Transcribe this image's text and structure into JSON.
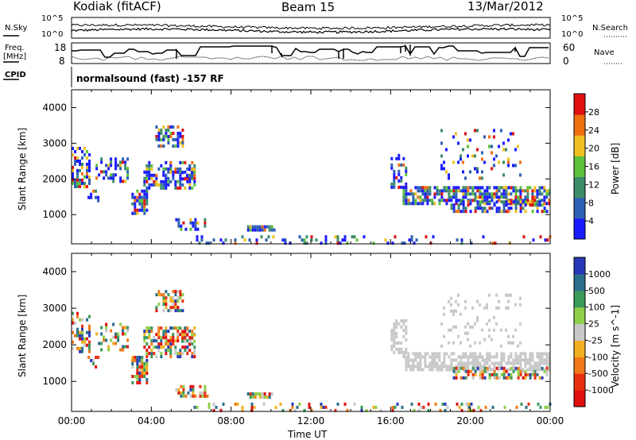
{
  "header": {
    "station": "Kodiak (fitACF)",
    "beam": "Beam 15",
    "date": "13/Mar/2012"
  },
  "noise_panel": {
    "left_label": "N.Sky",
    "right_label": "N.Search",
    "left_ticks": [
      "10^5",
      "10^0"
    ],
    "right_ticks": [
      "10^5",
      "10^0"
    ]
  },
  "freq_panel": {
    "left_label_1": "Freq.",
    "left_label_2": "[MHz]",
    "right_label": "Nave",
    "left_ticks": [
      "18",
      "8"
    ],
    "right_ticks": [
      "60",
      "0"
    ]
  },
  "cpid_panel": {
    "label": "CPID",
    "text": "normalsound (fast) -157 RF"
  },
  "chart_data": [
    {
      "type": "heatmap",
      "title": "Power",
      "ylabel": "Slant Range [km]",
      "xlabel": "",
      "y_ticks": [
        "1000",
        "2000",
        "3000",
        "4000"
      ],
      "ylim": [
        180,
        4500
      ],
      "colorbar_label": "Power [dB]",
      "colorbar_ticks": [
        "4",
        "8",
        "12",
        "16",
        "20",
        "24",
        "28"
      ],
      "colors": [
        "#1a1aff",
        "#2d5fb5",
        "#3c8c6a",
        "#5cc23c",
        "#f0c020",
        "#f07010",
        "#e01010"
      ]
    },
    {
      "type": "heatmap",
      "title": "Velocity",
      "ylabel": "Slant Range [km]",
      "xlabel": "Time UT",
      "y_ticks": [
        "1000",
        "2000",
        "3000",
        "4000"
      ],
      "ylim": [
        180,
        4500
      ],
      "colorbar_label": "Velocity [m s^-1]",
      "colorbar_ticks": [
        "1000",
        "500",
        "100",
        "25",
        "-25",
        "-100",
        "-500",
        "-1000"
      ],
      "colors": [
        "#2838b8",
        "#2a6e8c",
        "#3a9a5a",
        "#8ed04a",
        "#c8c8c8",
        "#f0b020",
        "#f07818",
        "#e83010",
        "#e01010"
      ]
    }
  ],
  "x_axis": {
    "label": "Time UT",
    "ticks": [
      "00:00",
      "04:00",
      "08:00",
      "12:00",
      "16:00",
      "20:00",
      "00:00"
    ]
  }
}
